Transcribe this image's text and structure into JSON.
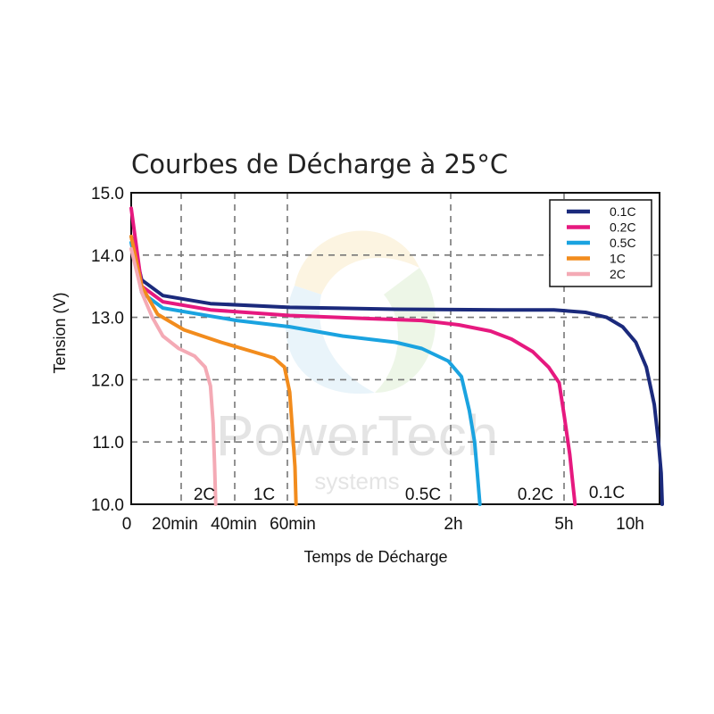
{
  "chart_data": {
    "type": "line",
    "title": "Courbes de Décharge à 25°C",
    "xlabel": "Temps de Décharge",
    "ylabel": "Tension (V)",
    "ylim": [
      10.0,
      15.0
    ],
    "yticks": [
      "10.0",
      "11.0",
      "12.0",
      "13.0",
      "14.0",
      "15.0"
    ],
    "yticks_values": [
      10,
      11,
      12,
      13,
      14,
      15
    ],
    "xticks": [
      "0",
      "20min",
      "40min",
      "60min",
      "2h",
      "5h",
      "10h"
    ],
    "grid": true,
    "legend_position": "top-right",
    "watermark": {
      "main": "PowerTech",
      "sub": "systems"
    },
    "series": [
      {
        "name": "0.1C",
        "color": "#1b2a7c",
        "end_label": "0.1C",
        "points": [
          [
            0,
            14.3
          ],
          [
            0.02,
            13.6
          ],
          [
            0.06,
            13.35
          ],
          [
            0.15,
            13.22
          ],
          [
            0.3,
            13.16
          ],
          [
            0.5,
            13.13
          ],
          [
            0.7,
            13.12
          ],
          [
            0.8,
            13.12
          ],
          [
            0.86,
            13.08
          ],
          [
            0.9,
            13.0
          ],
          [
            0.93,
            12.85
          ],
          [
            0.955,
            12.6
          ],
          [
            0.975,
            12.2
          ],
          [
            0.99,
            11.6
          ],
          [
            0.998,
            11.0
          ],
          [
            1.003,
            10.5
          ],
          [
            1.005,
            10.0
          ]
        ]
      },
      {
        "name": "0.2C",
        "color": "#e6197f",
        "end_label": "0.2C",
        "points": [
          [
            0,
            14.75
          ],
          [
            0.02,
            13.5
          ],
          [
            0.06,
            13.25
          ],
          [
            0.15,
            13.12
          ],
          [
            0.3,
            13.03
          ],
          [
            0.45,
            12.98
          ],
          [
            0.55,
            12.95
          ],
          [
            0.62,
            12.88
          ],
          [
            0.68,
            12.78
          ],
          [
            0.72,
            12.65
          ],
          [
            0.76,
            12.45
          ],
          [
            0.79,
            12.2
          ],
          [
            0.81,
            11.95
          ],
          [
            0.82,
            11.4
          ],
          [
            0.83,
            10.8
          ],
          [
            0.835,
            10.4
          ],
          [
            0.84,
            10.0
          ]
        ]
      },
      {
        "name": "0.5C",
        "color": "#1aa3e0",
        "end_label": "0.5C",
        "points": [
          [
            0,
            14.2
          ],
          [
            0.02,
            13.4
          ],
          [
            0.06,
            13.15
          ],
          [
            0.15,
            13.02
          ],
          [
            0.2,
            12.95
          ],
          [
            0.3,
            12.85
          ],
          [
            0.4,
            12.7
          ],
          [
            0.5,
            12.6
          ],
          [
            0.55,
            12.5
          ],
          [
            0.6,
            12.3
          ],
          [
            0.625,
            12.05
          ],
          [
            0.64,
            11.5
          ],
          [
            0.65,
            11.0
          ],
          [
            0.655,
            10.5
          ],
          [
            0.66,
            10.0
          ]
        ]
      },
      {
        "name": "1C",
        "color": "#f28c1d",
        "end_label": "1C",
        "points": [
          [
            0,
            14.3
          ],
          [
            0.02,
            13.5
          ],
          [
            0.05,
            13.05
          ],
          [
            0.1,
            12.8
          ],
          [
            0.17,
            12.6
          ],
          [
            0.23,
            12.45
          ],
          [
            0.27,
            12.35
          ],
          [
            0.29,
            12.2
          ],
          [
            0.3,
            11.8
          ],
          [
            0.305,
            11.2
          ],
          [
            0.31,
            10.6
          ],
          [
            0.312,
            10.0
          ]
        ]
      },
      {
        "name": "2C",
        "color": "#f4aab5",
        "end_label": "2C",
        "points": [
          [
            0,
            14.1
          ],
          [
            0.02,
            13.4
          ],
          [
            0.04,
            13.0
          ],
          [
            0.06,
            12.7
          ],
          [
            0.09,
            12.5
          ],
          [
            0.12,
            12.38
          ],
          [
            0.14,
            12.2
          ],
          [
            0.15,
            11.9
          ],
          [
            0.155,
            11.3
          ],
          [
            0.158,
            10.6
          ],
          [
            0.16,
            10.0
          ]
        ]
      }
    ]
  }
}
